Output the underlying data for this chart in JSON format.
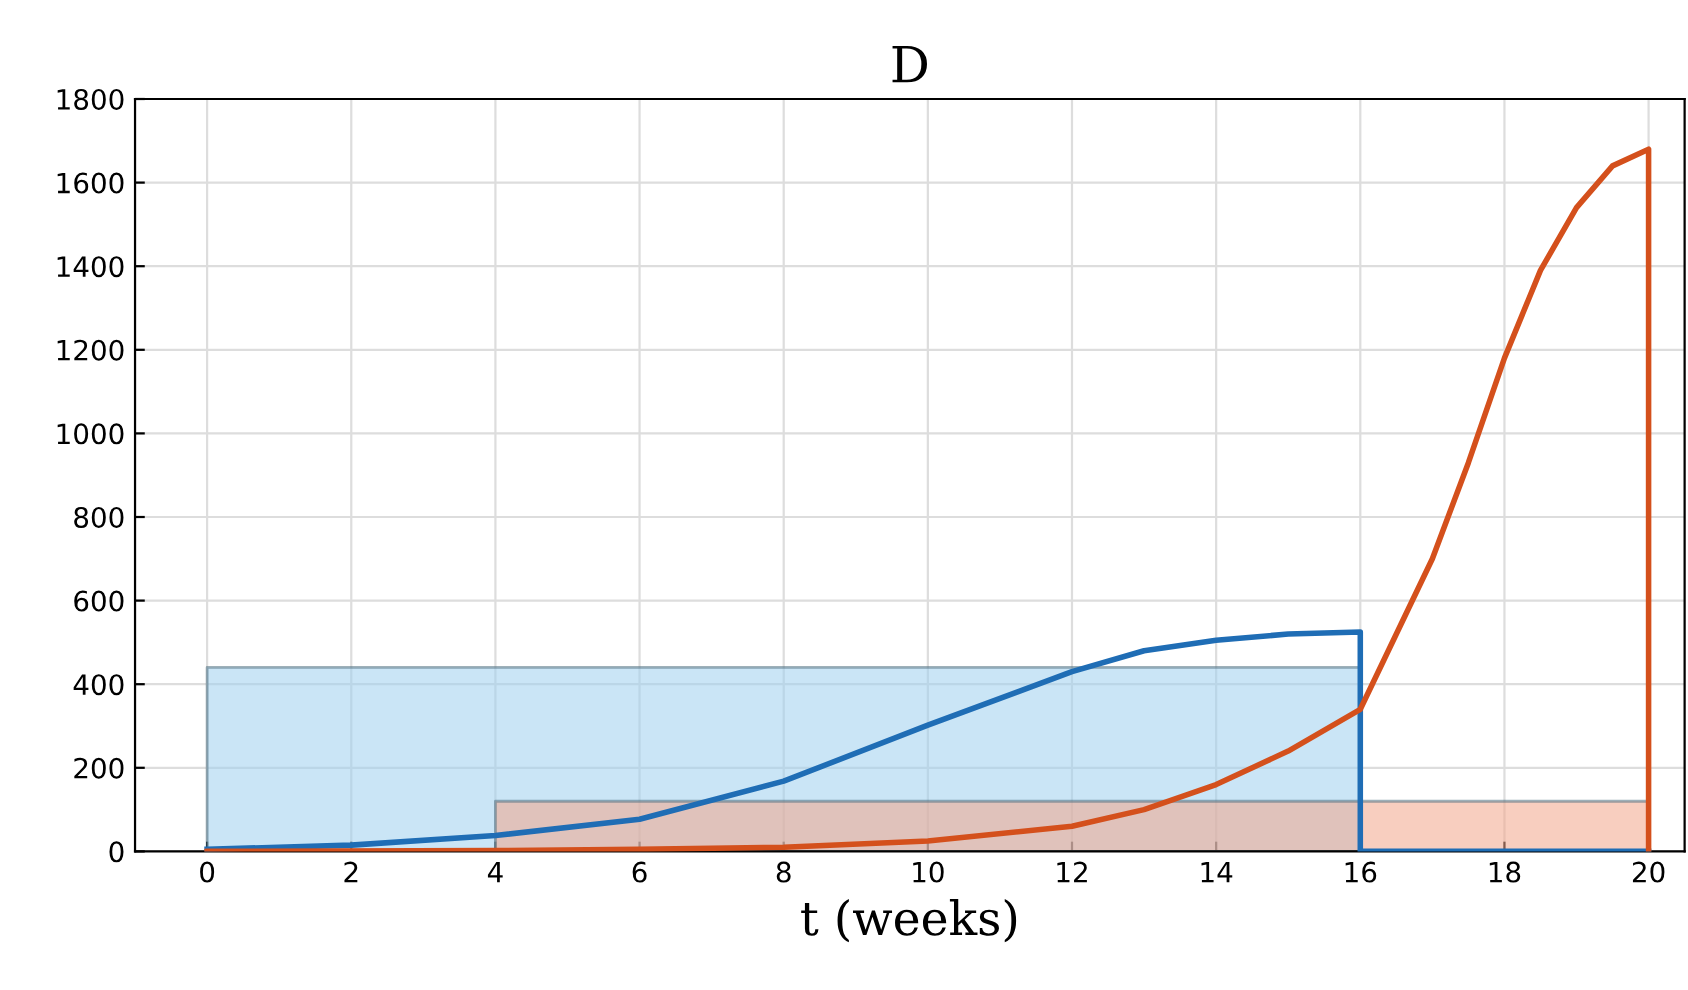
{
  "chart_data": {
    "type": "line",
    "title": "D",
    "xlabel": "t (weeks)",
    "xlim": [
      -1,
      20.5
    ],
    "ylim": [
      0,
      1800
    ],
    "xticks": [
      0,
      2,
      4,
      6,
      8,
      10,
      12,
      14,
      16,
      18,
      20
    ],
    "yticks": [
      0,
      200,
      400,
      600,
      800,
      1000,
      1200,
      1400,
      1600,
      1800
    ],
    "grid": true,
    "series": [
      {
        "type": "area",
        "color": "#9fd0ef",
        "x": [
          0,
          16
        ],
        "values": [
          440,
          440
        ]
      },
      {
        "type": "area",
        "color": "#f2a58a",
        "x": [
          4,
          20
        ],
        "values": [
          120,
          120
        ]
      },
      {
        "color": "#1f6db5",
        "x": [
          0,
          2,
          4,
          6,
          8,
          10,
          12,
          13,
          14,
          15,
          16,
          16,
          20
        ],
        "values": [
          5,
          15,
          38,
          77,
          168,
          302,
          430,
          480,
          505,
          520,
          525,
          0,
          0
        ]
      },
      {
        "color": "#d4501c",
        "x": [
          0,
          4,
          6,
          8,
          10,
          12,
          13,
          14,
          15,
          16,
          17,
          17.5,
          18,
          18.5,
          19,
          19.5,
          20,
          20
        ],
        "values": [
          0,
          2,
          5,
          10,
          25,
          60,
          100,
          160,
          240,
          340,
          700,
          930,
          1180,
          1390,
          1540,
          1640,
          1680,
          0
        ]
      }
    ]
  }
}
